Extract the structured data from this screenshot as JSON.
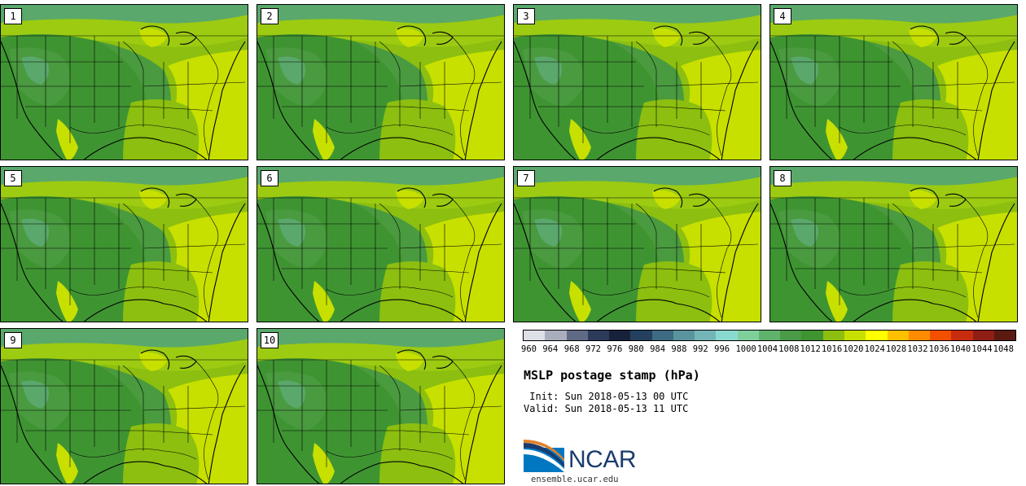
{
  "panels": [
    {
      "label": "1"
    },
    {
      "label": "2"
    },
    {
      "label": "3"
    },
    {
      "label": "4"
    },
    {
      "label": "5"
    },
    {
      "label": "6"
    },
    {
      "label": "7"
    },
    {
      "label": "8"
    },
    {
      "label": "9"
    },
    {
      "label": "10"
    }
  ],
  "colorbar": {
    "levels": [
      "960",
      "964",
      "968",
      "972",
      "976",
      "980",
      "984",
      "988",
      "992",
      "996",
      "1000",
      "1004",
      "1008",
      "1012",
      "1016",
      "1020",
      "1024",
      "1028",
      "1032",
      "1036",
      "1040",
      "1044",
      "1048"
    ],
    "colors": [
      "#dde0e6",
      "#a9adbd",
      "#616a84",
      "#2d3b5b",
      "#17213a",
      "#24405f",
      "#3d6b83",
      "#5a959f",
      "#74b5b8",
      "#8ad9d0",
      "#80cf9b",
      "#5fb36c",
      "#4b9a48",
      "#3f9432",
      "#8cbf0f",
      "#c7e000",
      "#ffff00",
      "#ffc000",
      "#ff8c00",
      "#f25000",
      "#c72d0c",
      "#8f1e14",
      "#5a1a10"
    ]
  },
  "title": "MSLP postage stamp (hPa)",
  "init": " Init: Sun 2018-05-13 00 UTC",
  "valid": "Valid: Sun 2018-05-13 11 UTC",
  "logo": {
    "name": "NCAR",
    "colors": {
      "blue": "#0077c0",
      "navy": "#1a3c6e",
      "orange": "#e0822b"
    }
  },
  "site": "ensemble.ucar.edu",
  "map_colors": {
    "deep_green": "#4a9a40",
    "mid_green": "#3f9432",
    "lime": "#8cbf0f",
    "yellow_green": "#c7e000",
    "teal": "#5aa86b",
    "outline": "#000000"
  }
}
